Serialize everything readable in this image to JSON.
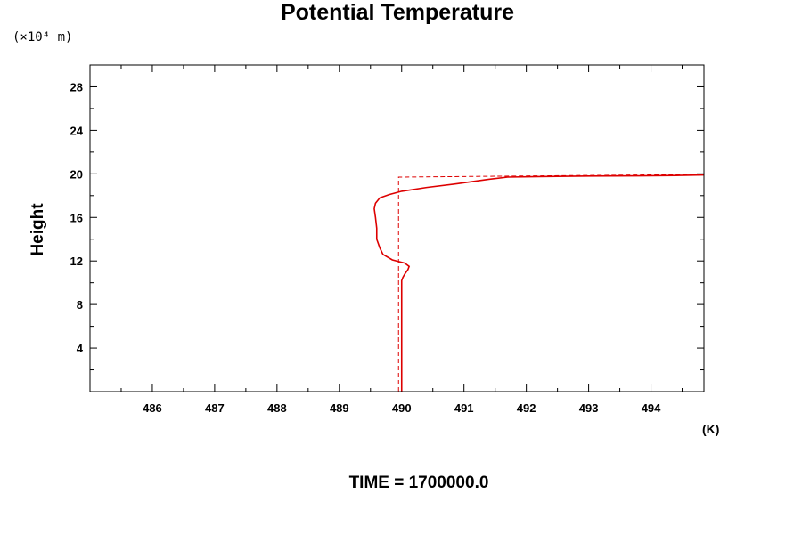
{
  "chart_data": {
    "type": "line",
    "title": "Potential Temperature",
    "ylabel": "Height",
    "y_unit": "(×10⁴ m)",
    "x_unit": "(K)",
    "footer": "TIME = 1700000.0",
    "xlim": [
      485,
      494.85
    ],
    "ylim": [
      0,
      30
    ],
    "x_ticks": [
      486,
      487,
      488,
      489,
      490,
      491,
      492,
      493,
      494
    ],
    "y_ticks": [
      4,
      8,
      12,
      16,
      20,
      24,
      28
    ],
    "color": "#dd0000",
    "series": [
      {
        "style": "solid",
        "x": [
          490.0,
          490.0,
          490.0,
          490.0,
          490.0,
          490.02,
          490.05,
          490.1,
          490.12,
          490.05,
          489.85,
          489.7,
          489.65,
          489.6,
          489.6,
          489.58,
          489.56,
          489.58,
          489.65,
          489.8,
          490.0,
          490.4,
          490.9,
          491.4,
          491.7,
          492.2,
          493.0,
          493.8,
          494.4,
          494.85
        ],
        "y": [
          0,
          2.5,
          5,
          7.5,
          10.2,
          10.5,
          10.8,
          11.2,
          11.5,
          11.8,
          12.1,
          12.6,
          13.2,
          14.0,
          15.0,
          16.0,
          16.8,
          17.3,
          17.8,
          18.1,
          18.4,
          18.75,
          19.1,
          19.5,
          19.7,
          19.75,
          19.8,
          19.82,
          19.85,
          19.9
        ]
      },
      {
        "style": "dashed",
        "x": [
          489.95,
          489.95,
          494.85
        ],
        "y": [
          0,
          19.7,
          19.95
        ]
      }
    ]
  }
}
